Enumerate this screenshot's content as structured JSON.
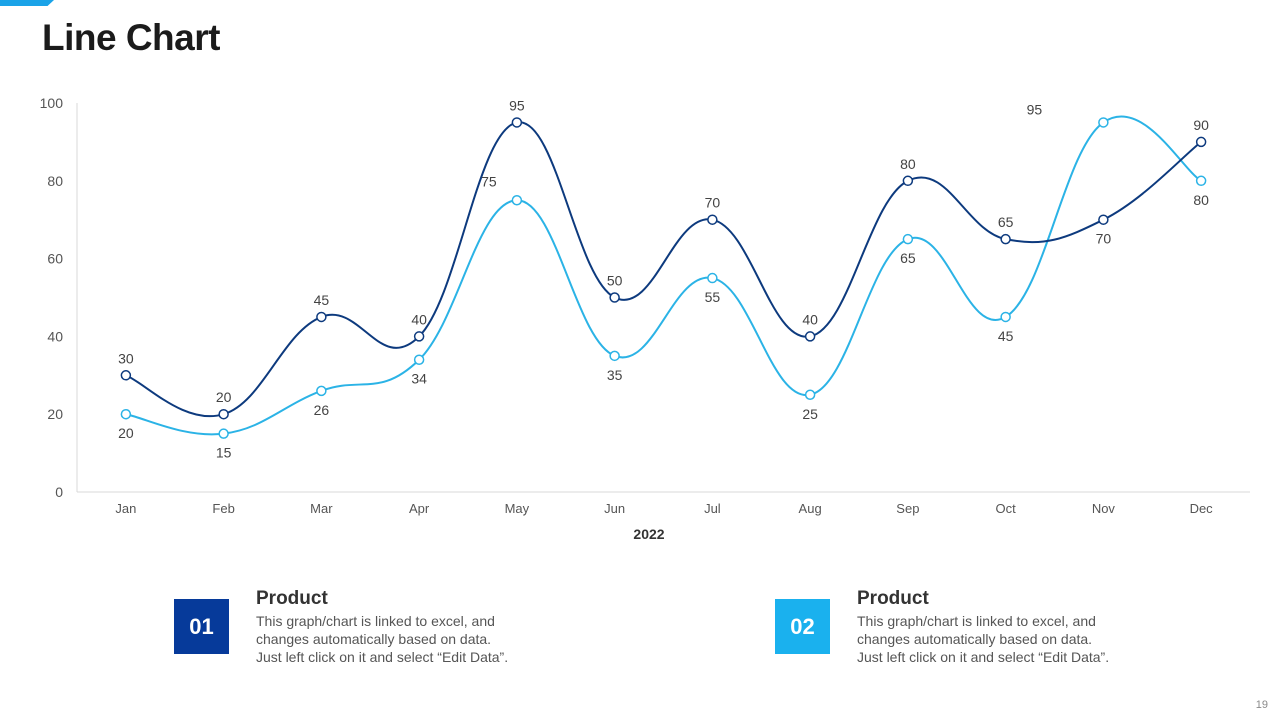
{
  "page": {
    "title": "Line Chart",
    "slide_number": "19",
    "accent_color": "#1aa3e8"
  },
  "chart_data": {
    "type": "line",
    "title": "",
    "xlabel": "2022",
    "ylabel": "",
    "categories": [
      "Jan",
      "Feb",
      "Mar",
      "Apr",
      "May",
      "Jun",
      "Jul",
      "Aug",
      "Sep",
      "Oct",
      "Nov",
      "Dec"
    ],
    "ylim": [
      0,
      100
    ],
    "yticks": [
      0,
      20,
      40,
      60,
      80,
      100
    ],
    "grid": false,
    "series": [
      {
        "name": "Product 01",
        "color": "#0d3a7e",
        "values": [
          30,
          20,
          45,
          40,
          95,
          50,
          70,
          40,
          80,
          65,
          70,
          90
        ]
      },
      {
        "name": "Product 02",
        "color": "#2bb3e6",
        "values": [
          20,
          15,
          26,
          34,
          75,
          35,
          55,
          25,
          65,
          45,
          95,
          80
        ]
      }
    ]
  },
  "legend": {
    "items": [
      {
        "number": "01",
        "color": "#063a9a",
        "heading": "Product",
        "line1": "This graph/chart is linked to excel, and",
        "line2": "changes automatically based on data.",
        "line3": "Just left click on it and select “Edit Data”."
      },
      {
        "number": "02",
        "color": "#1ab1ee",
        "heading": "Product",
        "line1": "This graph/chart is linked to excel, and",
        "line2": "changes automatically based on data.",
        "line3": "Just left click on it and select “Edit Data”."
      }
    ]
  }
}
